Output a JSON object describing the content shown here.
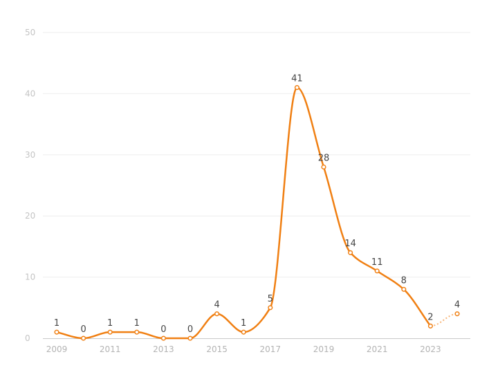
{
  "chart_data": {
    "type": "line",
    "title": "",
    "xlabel": "",
    "ylabel": "",
    "x": [
      2009,
      2010,
      2011,
      2012,
      2013,
      2014,
      2015,
      2016,
      2017,
      2018,
      2019,
      2020,
      2021,
      2022,
      2023,
      2024
    ],
    "values": [
      1,
      0,
      1,
      1,
      0,
      0,
      4,
      1,
      5,
      41,
      28,
      14,
      11,
      8,
      2,
      4
    ],
    "projected_from_x": 2023,
    "xticks": [
      2009,
      2011,
      2013,
      2015,
      2017,
      2019,
      2021,
      2023
    ],
    "yticks": [
      0,
      10,
      20,
      30,
      40,
      50
    ],
    "ylim": [
      0,
      50
    ],
    "xlim": [
      2009,
      2024
    ],
    "grid": "horizontal",
    "smooth": true,
    "line_color": "#f07f12",
    "projected_color": "#f7b477"
  }
}
